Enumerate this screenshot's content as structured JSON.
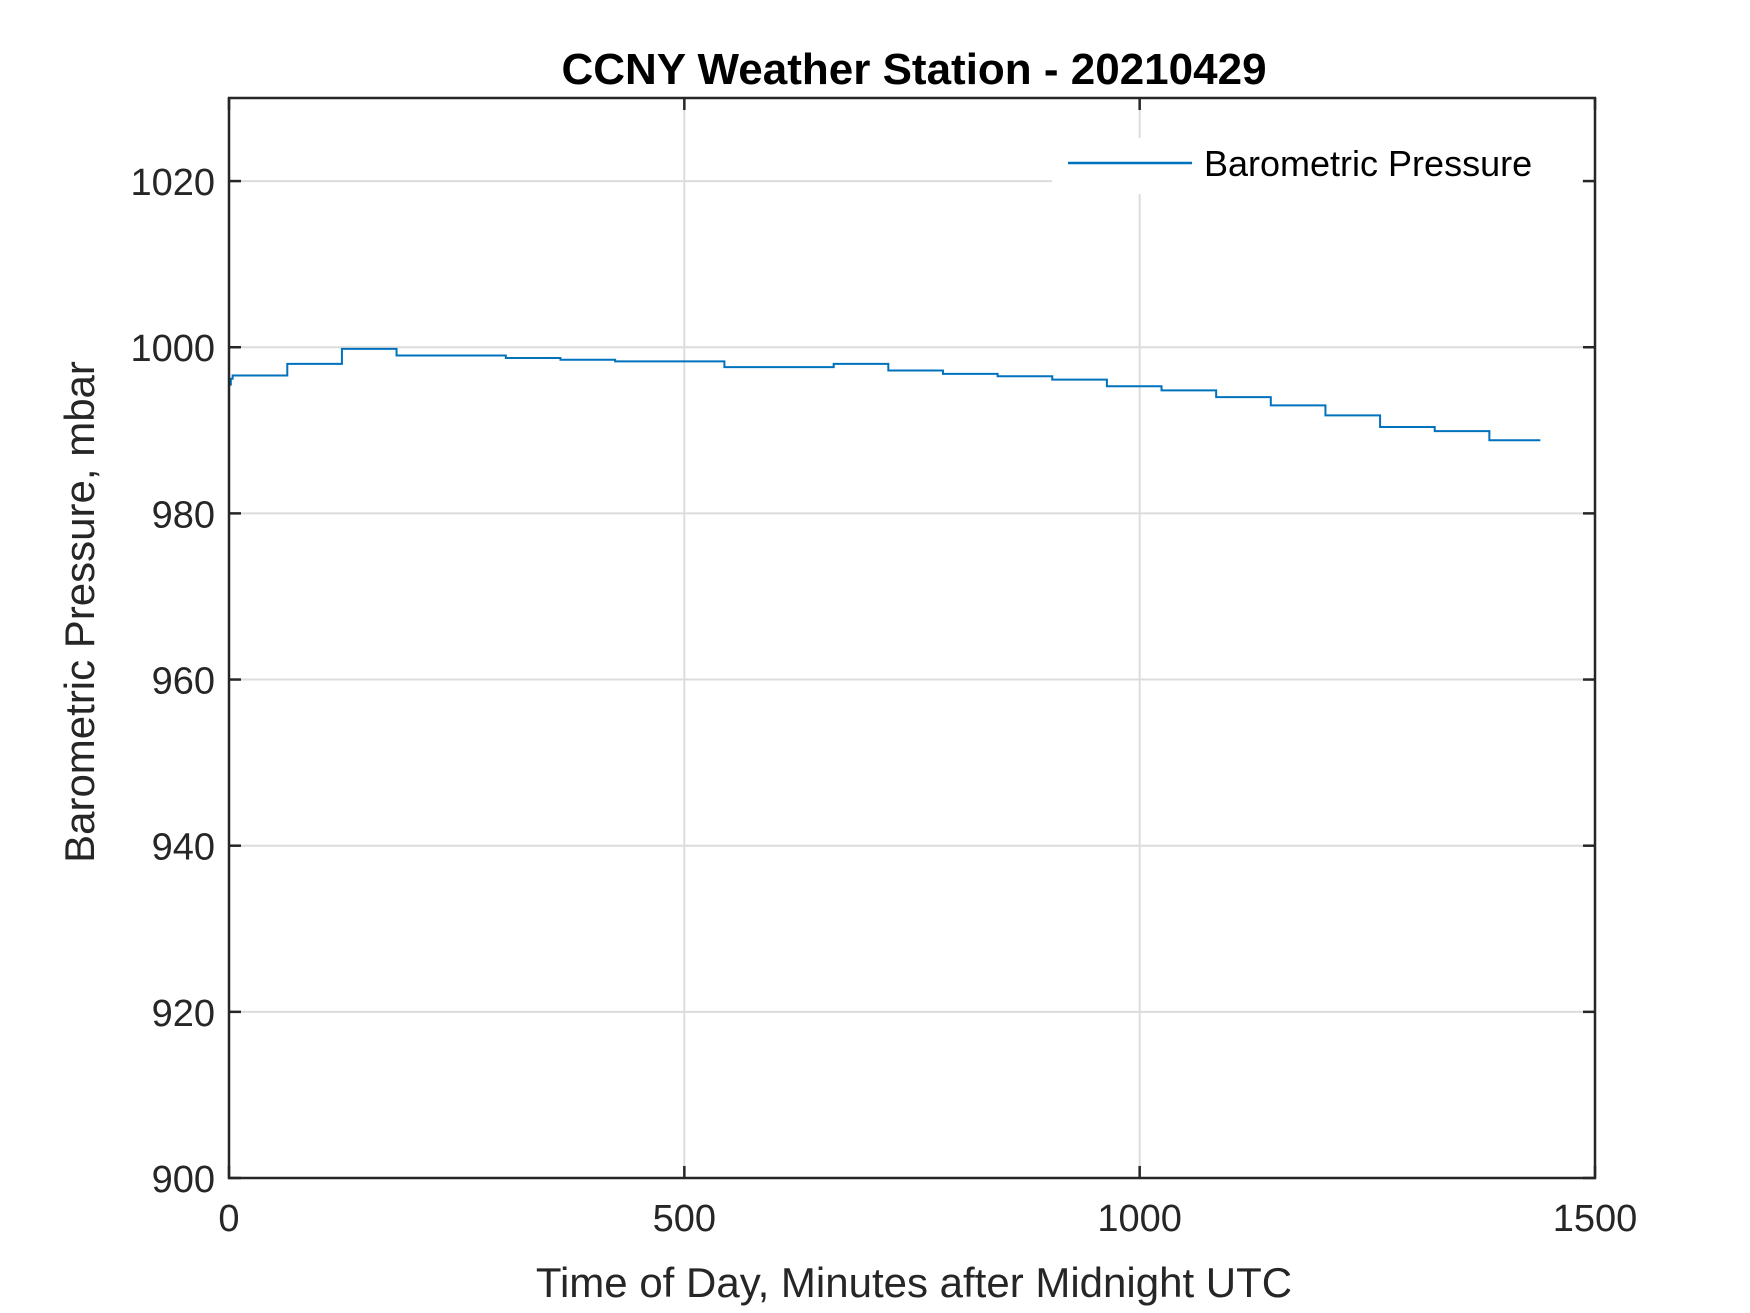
{
  "chart_data": {
    "type": "line",
    "title": "CCNY Weather Station - 20210429",
    "xlabel": "Time of Day, Minutes after Midnight UTC",
    "ylabel": "Barometric Pressure, mbar",
    "xlim": [
      0,
      1500
    ],
    "ylim": [
      900,
      1030
    ],
    "xticks": [
      0,
      500,
      1000,
      1500
    ],
    "yticks": [
      900,
      920,
      940,
      960,
      980,
      1000,
      1020
    ],
    "xtick_labels": [
      "0",
      "500",
      "1000",
      "1500"
    ],
    "ytick_labels": [
      "900",
      "920",
      "940",
      "960",
      "980",
      "1000",
      "1020"
    ],
    "grid": true,
    "legend_position": "top-right",
    "series": [
      {
        "name": "Barometric Pressure",
        "color": "#0072BD",
        "step": true,
        "x": [
          0,
          2,
          4,
          64,
          124,
          184,
          304,
          364,
          424,
          544,
          664,
          724,
          784,
          844,
          904,
          964,
          1024,
          1084,
          1144,
          1204,
          1264,
          1324,
          1384,
          1440
        ],
        "y": [
          995.5,
          996.2,
          996.6,
          998.0,
          999.8,
          999.0,
          998.7,
          998.5,
          998.3,
          997.6,
          998.0,
          997.2,
          996.8,
          996.5,
          996.1,
          995.3,
          994.8,
          994.0,
          993.0,
          991.8,
          990.4,
          989.9,
          988.8,
          988.8
        ]
      }
    ]
  }
}
